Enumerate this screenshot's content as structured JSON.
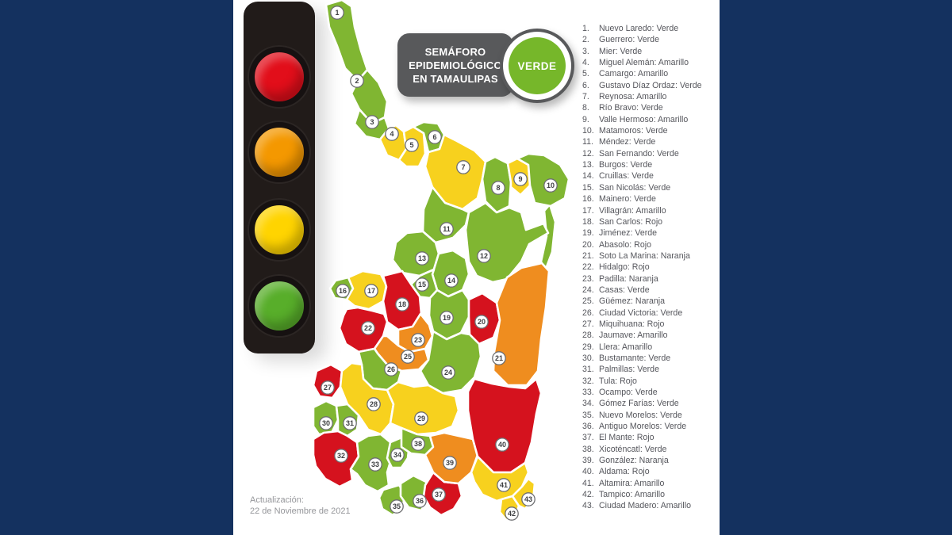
{
  "background_color": "#14315f",
  "badge": {
    "title": "SEMÁFORO EPIDEMIOLÓGICO EN TAMAULIPAS",
    "status_label": "VERDE",
    "bg_color": "#58595b",
    "status_circle_color": "#76b72a"
  },
  "traffic_light": {
    "body_color": "#211b19",
    "lights": [
      {
        "name": "rojo",
        "color": "#e20e1a"
      },
      {
        "name": "naranja",
        "color": "#f49800"
      },
      {
        "name": "amarillo",
        "color": "#ffd400"
      },
      {
        "name": "verde",
        "color": "#58ae2a"
      }
    ]
  },
  "status_colors": {
    "Verde": "#80b632",
    "Amarillo": "#f7d11e",
    "Naranja": "#ef8d1f",
    "Rojo": "#d5121e"
  },
  "footer": {
    "label": "Actualización:",
    "date": "22 de Noviembre de 2021"
  },
  "municipalities": [
    {
      "n": 1,
      "name": "Nuevo Laredo",
      "status": "Verde"
    },
    {
      "n": 2,
      "name": "Guerrero",
      "status": "Verde"
    },
    {
      "n": 3,
      "name": "Mier",
      "status": "Verde"
    },
    {
      "n": 4,
      "name": "Miguel Alemán",
      "status": "Amarillo"
    },
    {
      "n": 5,
      "name": "Camargo",
      "status": "Amarillo"
    },
    {
      "n": 6,
      "name": "Gustavo Díaz Ordaz",
      "status": "Verde"
    },
    {
      "n": 7,
      "name": "Reynosa",
      "status": "Amarillo"
    },
    {
      "n": 8,
      "name": "Río Bravo",
      "status": "Verde"
    },
    {
      "n": 9,
      "name": "Valle Hermoso",
      "status": "Amarillo"
    },
    {
      "n": 10,
      "name": "Matamoros",
      "status": "Verde"
    },
    {
      "n": 11,
      "name": "Méndez",
      "status": "Verde"
    },
    {
      "n": 12,
      "name": "San Fernando",
      "status": "Verde"
    },
    {
      "n": 13,
      "name": "Burgos",
      "status": "Verde"
    },
    {
      "n": 14,
      "name": "Cruillas",
      "status": "Verde"
    },
    {
      "n": 15,
      "name": "San Nicolás",
      "status": "Verde"
    },
    {
      "n": 16,
      "name": "Mainero",
      "status": "Verde"
    },
    {
      "n": 17,
      "name": "Villagrán",
      "status": "Amarillo"
    },
    {
      "n": 18,
      "name": "San Carlos",
      "status": "Rojo"
    },
    {
      "n": 19,
      "name": "Jiménez",
      "status": "Verde"
    },
    {
      "n": 20,
      "name": "Abasolo",
      "status": "Rojo"
    },
    {
      "n": 21,
      "name": "Soto La Marina",
      "status": "Naranja"
    },
    {
      "n": 22,
      "name": "Hidalgo",
      "status": "Rojo"
    },
    {
      "n": 23,
      "name": "Padilla",
      "status": "Naranja"
    },
    {
      "n": 24,
      "name": "Casas",
      "status": "Verde"
    },
    {
      "n": 25,
      "name": "Güémez",
      "status": "Naranja"
    },
    {
      "n": 26,
      "name": "Ciudad Victoria",
      "status": "Verde"
    },
    {
      "n": 27,
      "name": "Miquihuana",
      "status": "Rojo"
    },
    {
      "n": 28,
      "name": "Jaumave",
      "status": "Amarillo"
    },
    {
      "n": 29,
      "name": "Llera",
      "status": "Amarillo"
    },
    {
      "n": 30,
      "name": "Bustamante",
      "status": "Verde"
    },
    {
      "n": 31,
      "name": "Palmillas",
      "status": "Verde"
    },
    {
      "n": 32,
      "name": "Tula",
      "status": "Rojo"
    },
    {
      "n": 33,
      "name": "Ocampo",
      "status": "Verde"
    },
    {
      "n": 34,
      "name": "Gómez Farías",
      "status": "Verde"
    },
    {
      "n": 35,
      "name": "Nuevo Morelos",
      "status": "Verde"
    },
    {
      "n": 36,
      "name": "Antiguo Morelos",
      "status": "Verde"
    },
    {
      "n": 37,
      "name": "El Mante",
      "status": "Rojo"
    },
    {
      "n": 38,
      "name": "Xicoténcatl",
      "status": "Verde"
    },
    {
      "n": 39,
      "name": "González",
      "status": "Naranja"
    },
    {
      "n": 40,
      "name": "Aldama",
      "status": "Rojo"
    },
    {
      "n": 41,
      "name": "Altamira",
      "status": "Amarillo"
    },
    {
      "n": 42,
      "name": "Tampico",
      "status": "Amarillo"
    },
    {
      "n": 43,
      "name": "Ciudad Madero",
      "status": "Amarillo"
    }
  ]
}
